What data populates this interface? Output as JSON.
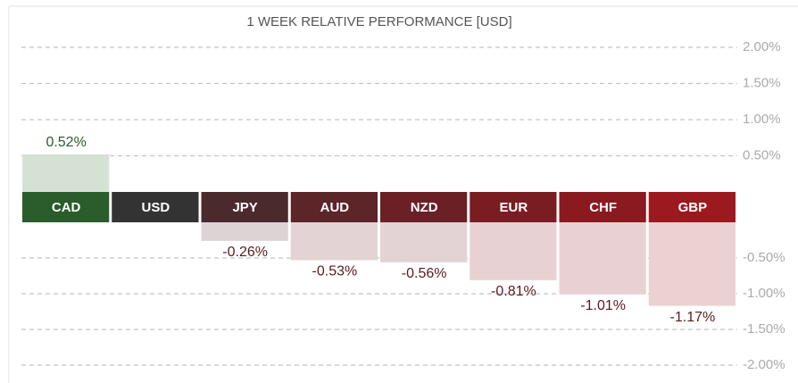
{
  "chart_data": {
    "type": "bar",
    "title": "1 WEEK RELATIVE PERFORMANCE  [USD]",
    "categories": [
      "CAD",
      "USD",
      "JPY",
      "AUD",
      "NZD",
      "EUR",
      "CHF",
      "GBP"
    ],
    "values": [
      0.52,
      0,
      -0.26,
      -0.53,
      -0.56,
      -0.81,
      -1.01,
      -1.17
    ],
    "value_labels": [
      "0.52%",
      null,
      "-0.26%",
      "-0.53%",
      "-0.56%",
      "-0.81%",
      "-1.01%",
      "-1.17%"
    ],
    "colors": [
      "#2b5c2c",
      "#333333",
      "#4b2a2d",
      "#5c2528",
      "#6b2026",
      "#7a1d23",
      "#8b1a20",
      "#9c1a1f"
    ],
    "bar_colors": [
      "#d6e1d5",
      "#d9d9d9",
      "#ddd3d4",
      "#e3d3d5",
      "#e3d3d5",
      "#e8d1d3",
      "#e9d1d3",
      "#ecd1d3"
    ],
    "ylim": [
      -2,
      2
    ],
    "yticks": [
      {
        "value": 2,
        "label": "2.00%"
      },
      {
        "value": 1.5,
        "label": "1.50%"
      },
      {
        "value": 1,
        "label": "1.00%"
      },
      {
        "value": 0.5,
        "label": "0.50%"
      },
      {
        "value": -0.5,
        "label": "-0.50%"
      },
      {
        "value": -1,
        "label": "-1.00%"
      },
      {
        "value": -1.5,
        "label": "-1.50%"
      },
      {
        "value": -2,
        "label": "-2.00%"
      }
    ],
    "grid": true
  }
}
